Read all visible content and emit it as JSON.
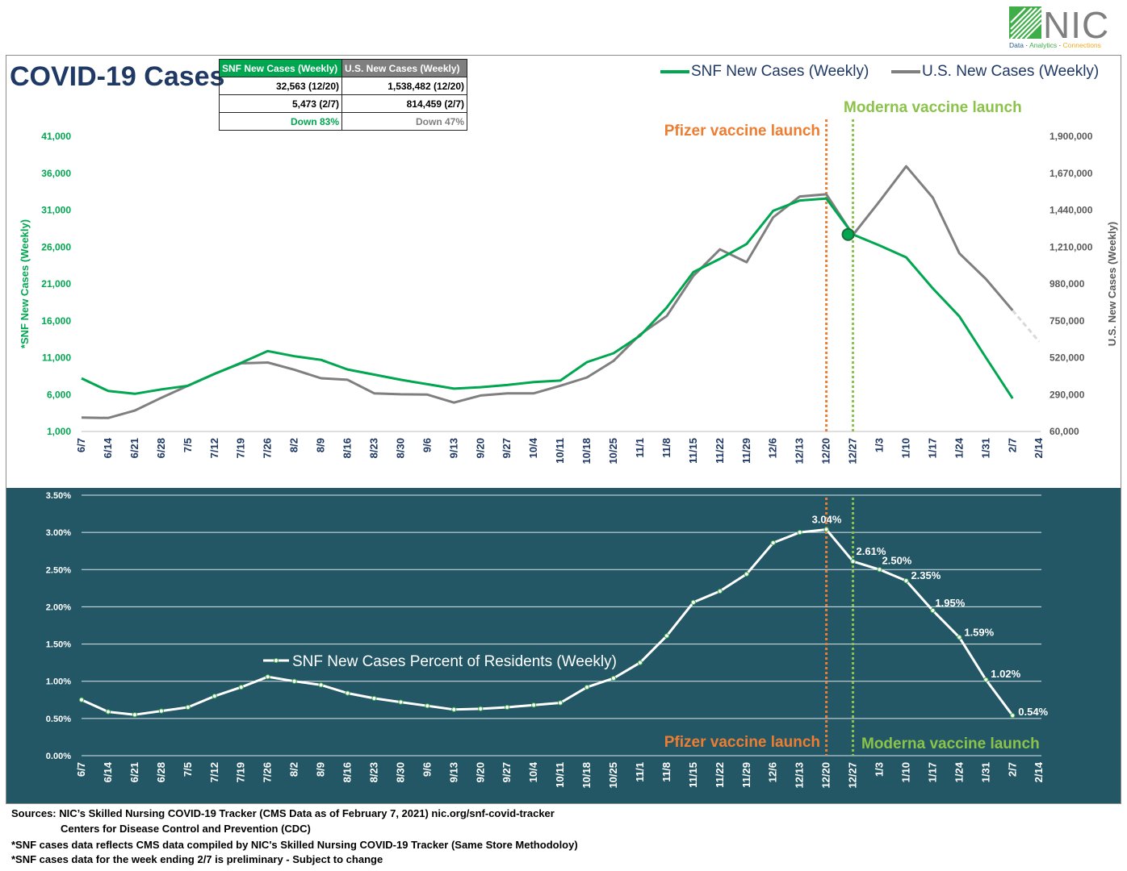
{
  "logo": {
    "text": "NIC",
    "tagline": [
      "Data",
      " · ",
      "Analytics",
      " · ",
      "Connections"
    ]
  },
  "title": "COVID-19 Cases",
  "summary_table": {
    "headers": [
      "SNF New Cases (Weekly)",
      "U.S. New Cases (Weekly)"
    ],
    "rows": [
      [
        "32,563 (12/20)",
        "1,538,482 (12/20)"
      ],
      [
        "5,473 (2/7)",
        "814,459 (2/7)"
      ],
      [
        "Down 83%",
        "Down 47%"
      ]
    ]
  },
  "colors": {
    "snf": "#00a650",
    "us": "#7f7f7f",
    "pfizer": "#ed7d31",
    "moderna": "#8bc34a",
    "title": "#1f3864",
    "panel": "#235766"
  },
  "annotations": {
    "pfizer": "Pfizer vaccine launch",
    "moderna": "Moderna vaccine launch"
  },
  "chart_data": [
    {
      "type": "line",
      "categories": [
        "6/7",
        "6/14",
        "6/21",
        "6/28",
        "7/5",
        "7/12",
        "7/19",
        "7/26",
        "8/2",
        "8/9",
        "8/16",
        "8/23",
        "8/30",
        "9/6",
        "9/13",
        "9/20",
        "9/27",
        "10/4",
        "10/11",
        "10/18",
        "10/25",
        "11/1",
        "11/8",
        "11/15",
        "11/22",
        "11/29",
        "12/6",
        "12/13",
        "12/20",
        "12/27",
        "1/3",
        "1/10",
        "1/17",
        "1/24",
        "1/31",
        "2/7",
        "2/14"
      ],
      "ylabel": "*SNF New Cases (Weekly)",
      "ylabel_right": "U.S. New Cases (Weekly)",
      "ylim": [
        1000,
        41000
      ],
      "ylim_right": [
        60000,
        1900000
      ],
      "yticks": [
        "1,000",
        "6,000",
        "11,000",
        "16,000",
        "21,000",
        "26,000",
        "31,000",
        "36,000",
        "41,000"
      ],
      "yticks_right": [
        "60,000",
        "290,000",
        "520,000",
        "750,000",
        "980,000",
        "1,210,000",
        "1,440,000",
        "1,670,000",
        "1,900,000"
      ],
      "legend_position": "top-right",
      "grid": false,
      "series": [
        {
          "name": "SNF New Cases (Weekly)",
          "axis": "left",
          "values": [
            8200,
            6500,
            6100,
            6700,
            7200,
            8800,
            10300,
            11900,
            11200,
            10700,
            9400,
            8700,
            8000,
            7400,
            6800,
            7000,
            7300,
            7700,
            7900,
            10400,
            11600,
            14000,
            17800,
            22600,
            24400,
            26400,
            30900,
            32300,
            32563,
            27700,
            26200,
            24600,
            20400,
            16600,
            11000,
            5473,
            null
          ]
        },
        {
          "name": "U.S. New Cases (Weekly)",
          "axis": "right",
          "values": [
            147000,
            144000,
            190000,
            270000,
            345000,
            420000,
            485000,
            490000,
            445000,
            392000,
            382000,
            298000,
            292000,
            290000,
            240000,
            284000,
            298000,
            298000,
            345000,
            397000,
            500000,
            665000,
            780000,
            1030000,
            1195000,
            1115000,
            1395000,
            1525000,
            1538482,
            1285000,
            1495000,
            1713000,
            1518000,
            1170000,
            1010000,
            814459,
            620000
          ],
          "preliminary_from": "2/7"
        }
      ]
    },
    {
      "type": "line",
      "categories": [
        "6/7",
        "6/14",
        "6/21",
        "6/28",
        "7/5",
        "7/12",
        "7/19",
        "7/26",
        "8/2",
        "8/9",
        "8/16",
        "8/23",
        "8/30",
        "9/6",
        "9/13",
        "9/20",
        "9/27",
        "10/4",
        "10/11",
        "10/18",
        "10/25",
        "11/1",
        "11/8",
        "11/15",
        "11/22",
        "11/29",
        "12/6",
        "12/13",
        "12/20",
        "12/27",
        "1/3",
        "1/10",
        "1/17",
        "1/24",
        "1/31",
        "2/7",
        "2/14"
      ],
      "ylim": [
        0,
        3.5
      ],
      "yticks": [
        "0.00%",
        "0.50%",
        "1.00%",
        "1.50%",
        "2.00%",
        "2.50%",
        "3.00%",
        "3.50%"
      ],
      "legend_position": "center-left",
      "grid": true,
      "series": [
        {
          "name": "SNF New Cases Percent of Residents (Weekly)",
          "values": [
            0.75,
            0.59,
            0.55,
            0.6,
            0.65,
            0.8,
            0.92,
            1.06,
            1.0,
            0.95,
            0.84,
            0.77,
            0.72,
            0.67,
            0.62,
            0.63,
            0.65,
            0.68,
            0.71,
            0.92,
            1.04,
            1.25,
            1.61,
            2.06,
            2.21,
            2.44,
            2.86,
            3.0,
            3.04,
            2.61,
            2.5,
            2.35,
            1.95,
            1.59,
            1.02,
            0.54,
            null
          ]
        }
      ],
      "data_labels": [
        {
          "category": "12/20",
          "text": "3.04%"
        },
        {
          "category": "12/27",
          "text": "2.61%"
        },
        {
          "category": "1/3",
          "text": "2.50%"
        },
        {
          "category": "1/10",
          "text": "2.35%"
        },
        {
          "category": "1/17",
          "text": "1.95%"
        },
        {
          "category": "1/24",
          "text": "1.59%"
        },
        {
          "category": "1/31",
          "text": "1.02%"
        },
        {
          "category": "2/7",
          "text": "0.54%"
        }
      ]
    }
  ],
  "footer": {
    "sources_line1": "Sources:  NIC’s Skilled Nursing COVID-19 Tracker (CMS Data as of February 7, 2021)  nic.org/snf-covid-tracker",
    "sources_line2": "Centers for Disease Control and Prevention (CDC)",
    "note1": "*SNF cases data reflects CMS data compiled by NIC's Skilled Nursing COVID-19 Tracker (Same Store Methodoloy)",
    "note2": "*SNF cases data for the week ending 2/7 is preliminary - Subject to change"
  }
}
